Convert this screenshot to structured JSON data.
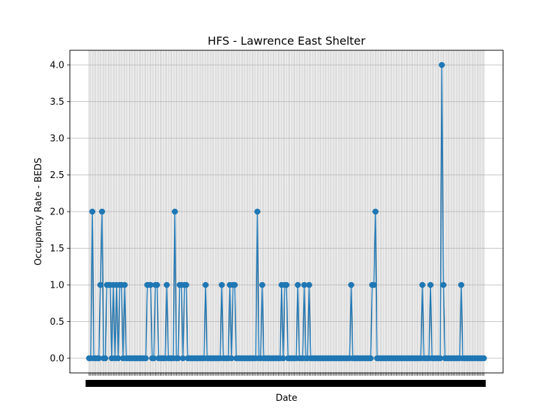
{
  "chart_data": {
    "type": "line",
    "title": "HFS - Lawrence East Shelter",
    "xlabel": "Date",
    "ylabel": "Occupancy Rate - BEDS",
    "ylim": [
      -0.2,
      4.2
    ],
    "yticks": [
      "0.0",
      "0.5",
      "1.0",
      "1.5",
      "2.0",
      "2.5",
      "3.0",
      "3.5",
      "4.0"
    ],
    "grid": true,
    "marker": "circle",
    "color": "#1f77b4",
    "series": [
      {
        "values": [
          0,
          0,
          2,
          0,
          0,
          0,
          0,
          1,
          2,
          0,
          0,
          1,
          1,
          1,
          0,
          1,
          0,
          1,
          0,
          1,
          1,
          0,
          1,
          0,
          0,
          0,
          0,
          0,
          0,
          0,
          0,
          0,
          0,
          0,
          0,
          0,
          1,
          1,
          1,
          0,
          0,
          1,
          1,
          0,
          0,
          0,
          0,
          0,
          1,
          0,
          0,
          0,
          0,
          2,
          0,
          0,
          1,
          1,
          0,
          1,
          1,
          0,
          0,
          0,
          0,
          0,
          0,
          0,
          0,
          0,
          0,
          0,
          1,
          0,
          0,
          0,
          0,
          0,
          0,
          0,
          0,
          0,
          1,
          0,
          0,
          0,
          0,
          1,
          0,
          1,
          1,
          0,
          0,
          0,
          0,
          0,
          0,
          0,
          0,
          0,
          0,
          0,
          0,
          0,
          2,
          0,
          0,
          1,
          0,
          0,
          0,
          0,
          0,
          0,
          0,
          0,
          0,
          0,
          0,
          1,
          0,
          1,
          1,
          0,
          0,
          0,
          0,
          0,
          0,
          1,
          0,
          0,
          0,
          1,
          0,
          0,
          1,
          0,
          0,
          0,
          0,
          0,
          0,
          0,
          0,
          0,
          0,
          0,
          0,
          0,
          0,
          0,
          0,
          0,
          0,
          0,
          0,
          0,
          0,
          0,
          0,
          0,
          1,
          0,
          0,
          0,
          0,
          0,
          0,
          0,
          0,
          0,
          0,
          0,
          0,
          1,
          1,
          2,
          0,
          0,
          0,
          0,
          0,
          0,
          0,
          0,
          0,
          0,
          0,
          0,
          0,
          0,
          0,
          0,
          0,
          0,
          0,
          0,
          0,
          0,
          0,
          0,
          0,
          0,
          0,
          0,
          1,
          0,
          0,
          0,
          0,
          1,
          0,
          0,
          0,
          0,
          0,
          0,
          4,
          1,
          0,
          0,
          0,
          0,
          0,
          0,
          0,
          0,
          0,
          0,
          1,
          0,
          0,
          0,
          0,
          0,
          0,
          0,
          0,
          0,
          0,
          0,
          0,
          0,
          0
        ]
      }
    ]
  }
}
